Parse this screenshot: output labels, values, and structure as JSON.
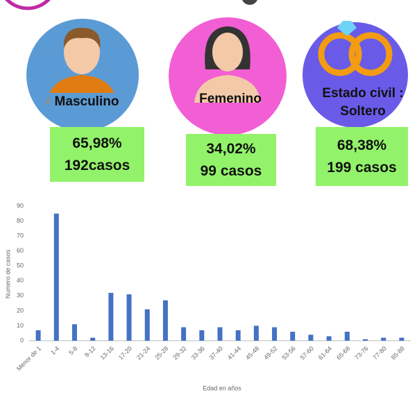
{
  "cards": [
    {
      "label": "Masculino",
      "percent": "65,98%",
      "cases": "192casos"
    },
    {
      "label": "Femenino",
      "percent": "34,02%",
      "cases": "99 casos"
    },
    {
      "label": "Estado civil : Soltero",
      "percent": "68,38%",
      "cases": "199 casos"
    }
  ],
  "chart_data": {
    "type": "bar",
    "x_label": "Edad en años",
    "y_label": "Numero de casos",
    "categories": [
      "Menor de 1",
      "1-4",
      "5-8",
      "9-12",
      "13-16",
      "17-20",
      "21-24",
      "25-28",
      "29-32",
      "33-36",
      "37-40",
      "41-44",
      "45-48",
      "49-52",
      "53-56",
      "57-60",
      "61-64",
      "65-68",
      "73-76",
      "77-80",
      "85-88"
    ],
    "values": [
      7,
      85,
      11,
      2,
      32,
      31,
      21,
      27,
      9,
      7,
      9,
      7,
      10,
      9,
      6,
      4,
      3,
      6,
      1,
      2,
      2
    ],
    "color": "#4472c4",
    "ylim": [
      0,
      90
    ],
    "yticks": [
      0,
      10,
      20,
      30,
      40,
      50,
      60,
      70,
      80,
      90
    ],
    "grid": false
  }
}
